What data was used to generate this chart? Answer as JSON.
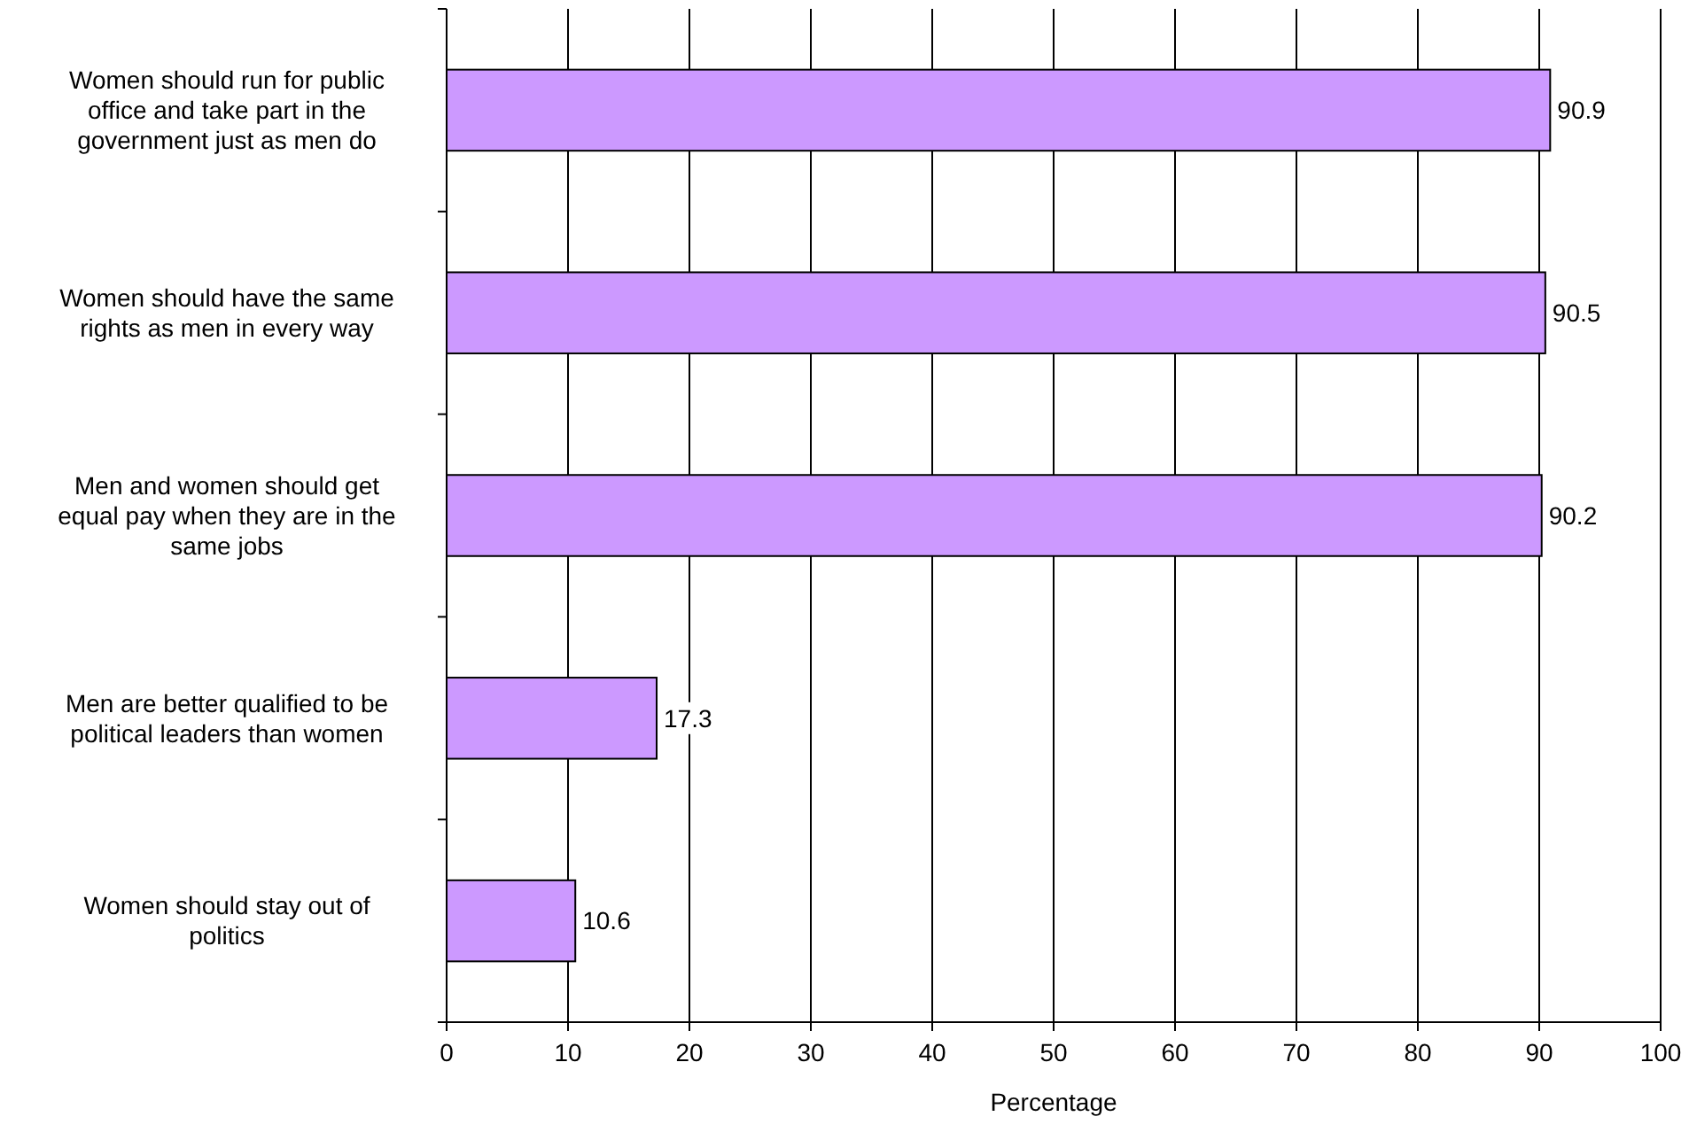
{
  "chart_data": {
    "type": "bar",
    "orientation": "horizontal",
    "xlabel": "Percentage",
    "categories": [
      "Women should run for public office and take part in the government just as men do",
      "Women should have the same rights as men in every way",
      "Men and women should get equal pay when they are in the same jobs",
      "Men are better qualified to be political leaders than women",
      "Women should stay out of politics"
    ],
    "values": [
      90.9,
      90.5,
      90.2,
      17.3,
      10.6
    ],
    "color": "#cc99ff",
    "xlim": [
      0,
      100
    ],
    "xticks": [
      0,
      10,
      20,
      30,
      40,
      50,
      60,
      70,
      80,
      90,
      100
    ],
    "grid": "x",
    "data_labels": true
  }
}
